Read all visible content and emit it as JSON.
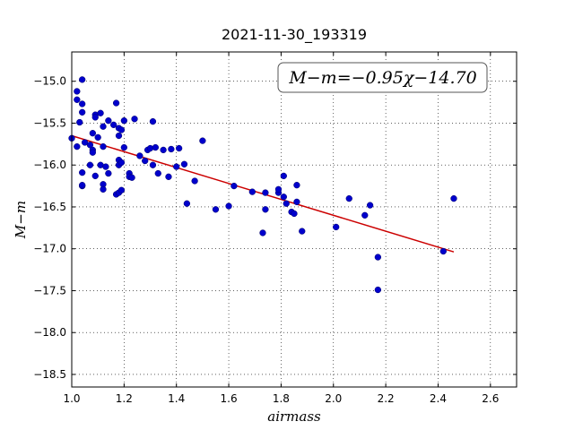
{
  "chart_data": {
    "type": "scatter",
    "title": "2021-11-30_193319",
    "xlabel": "airmass",
    "ylabel": "M−m",
    "xlim": [
      1.0,
      2.7
    ],
    "ylim": [
      -18.65,
      -14.65
    ],
    "y_inverted": true,
    "grid": true,
    "xticks": [
      1.0,
      1.2,
      1.4,
      1.6,
      1.8,
      2.0,
      2.2,
      2.4,
      2.6
    ],
    "yticks": [
      -15.0,
      -15.5,
      -16.0,
      -16.5,
      -17.0,
      -17.5,
      -18.0,
      -18.5
    ],
    "xtick_labels": [
      "1.0",
      "1.2",
      "1.4",
      "1.6",
      "1.8",
      "2.0",
      "2.2",
      "2.4",
      "2.6"
    ],
    "ytick_labels": [
      "−15.0",
      "−15.5",
      "−16.0",
      "−16.5",
      "−17.0",
      "−17.5",
      "−18.0",
      "−18.5"
    ],
    "annotation": "M−m=−0.95χ−14.70",
    "fit": {
      "slope": -0.95,
      "intercept": -14.7,
      "x_range": [
        1.0,
        2.46
      ],
      "color": "#cc0000"
    },
    "point_color": "#0000cc",
    "points": [
      [
        1.0,
        -15.68
      ],
      [
        1.02,
        -15.78
      ],
      [
        1.02,
        -15.12
      ],
      [
        1.02,
        -15.22
      ],
      [
        1.03,
        -15.49
      ],
      [
        1.04,
        -14.98
      ],
      [
        1.04,
        -15.27
      ],
      [
        1.04,
        -15.37
      ],
      [
        1.04,
        -16.09
      ],
      [
        1.04,
        -16.25
      ],
      [
        1.04,
        -16.24
      ],
      [
        1.05,
        -15.73
      ],
      [
        1.07,
        -16.0
      ],
      [
        1.07,
        -15.76
      ],
      [
        1.08,
        -15.82
      ],
      [
        1.08,
        -15.85
      ],
      [
        1.08,
        -15.62
      ],
      [
        1.09,
        -15.4
      ],
      [
        1.09,
        -15.43
      ],
      [
        1.09,
        -16.13
      ],
      [
        1.1,
        -15.67
      ],
      [
        1.11,
        -15.38
      ],
      [
        1.11,
        -16.0
      ],
      [
        1.12,
        -15.54
      ],
      [
        1.12,
        -15.78
      ],
      [
        1.12,
        -16.23
      ],
      [
        1.12,
        -16.29
      ],
      [
        1.13,
        -16.02
      ],
      [
        1.14,
        -16.1
      ],
      [
        1.14,
        -15.47
      ],
      [
        1.16,
        -15.52
      ],
      [
        1.17,
        -15.26
      ],
      [
        1.17,
        -16.35
      ],
      [
        1.18,
        -15.56
      ],
      [
        1.18,
        -15.65
      ],
      [
        1.18,
        -16.33
      ],
      [
        1.18,
        -15.94
      ],
      [
        1.18,
        -16.0
      ],
      [
        1.19,
        -16.3
      ],
      [
        1.19,
        -15.97
      ],
      [
        1.19,
        -15.58
      ],
      [
        1.2,
        -15.79
      ],
      [
        1.2,
        -15.47
      ],
      [
        1.22,
        -16.1
      ],
      [
        1.22,
        -16.14
      ],
      [
        1.23,
        -16.15
      ],
      [
        1.24,
        -15.45
      ],
      [
        1.26,
        -15.89
      ],
      [
        1.28,
        -15.95
      ],
      [
        1.29,
        -15.82
      ],
      [
        1.3,
        -15.8
      ],
      [
        1.31,
        -15.48
      ],
      [
        1.31,
        -16.0
      ],
      [
        1.32,
        -15.79
      ],
      [
        1.33,
        -16.1
      ],
      [
        1.35,
        -15.82
      ],
      [
        1.37,
        -16.14
      ],
      [
        1.38,
        -15.81
      ],
      [
        1.4,
        -16.02
      ],
      [
        1.41,
        -15.8
      ],
      [
        1.43,
        -15.99
      ],
      [
        1.44,
        -16.46
      ],
      [
        1.47,
        -16.19
      ],
      [
        1.5,
        -15.71
      ],
      [
        1.55,
        -16.53
      ],
      [
        1.6,
        -16.49
      ],
      [
        1.62,
        -16.25
      ],
      [
        1.69,
        -16.32
      ],
      [
        1.73,
        -16.81
      ],
      [
        1.74,
        -16.53
      ],
      [
        1.74,
        -16.33
      ],
      [
        1.79,
        -16.33
      ],
      [
        1.79,
        -16.29
      ],
      [
        1.81,
        -16.13
      ],
      [
        1.81,
        -16.38
      ],
      [
        1.82,
        -16.46
      ],
      [
        1.84,
        -16.56
      ],
      [
        1.85,
        -16.58
      ],
      [
        1.86,
        -16.24
      ],
      [
        1.86,
        -16.44
      ],
      [
        1.88,
        -16.79
      ],
      [
        2.01,
        -16.74
      ],
      [
        2.06,
        -16.4
      ],
      [
        2.12,
        -16.6
      ],
      [
        2.14,
        -16.48
      ],
      [
        2.17,
        -17.1
      ],
      [
        2.17,
        -17.49
      ],
      [
        2.42,
        -17.03
      ],
      [
        2.46,
        -16.4
      ]
    ]
  }
}
